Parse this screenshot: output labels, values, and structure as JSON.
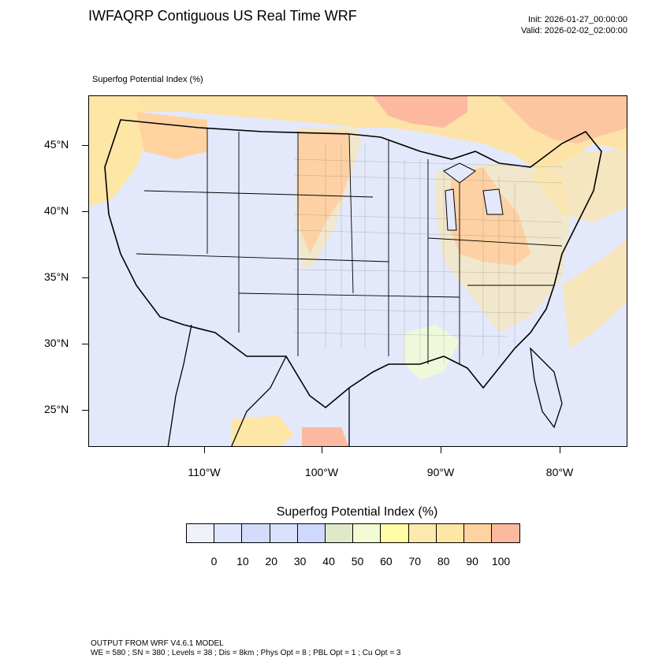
{
  "header": {
    "title": "IWFAQRP Contiguous US Real Time WRF",
    "init": "Init: 2026-01-27_00:00:00",
    "valid": "Valid: 2026-02-02_02:00:00"
  },
  "map": {
    "field_label": "Superfog Potential Index   (%)",
    "lat_labels": [
      "45°N",
      "40°N",
      "35°N",
      "30°N",
      "25°N"
    ],
    "lon_labels": [
      "110°W",
      "100°W",
      "90°W",
      "80°W"
    ]
  },
  "legend": {
    "title": "Superfog Potential Index  (%)",
    "colors": [
      "#eef1f8",
      "#e0e6fb",
      "#d3dcfb",
      "#d9e1fb",
      "#cfd8fd",
      "#dfe9c9",
      "#f2fbd3",
      "#fefca5",
      "#fde9ae",
      "#fde6a6",
      "#fed3a0",
      "#fcb9a0"
    ],
    "labels": [
      "0",
      "10",
      "20",
      "30",
      "40",
      "50",
      "60",
      "70",
      "80",
      "90",
      "100"
    ]
  },
  "footer": {
    "line1": "OUTPUT FROM WRF V4.6.1 MODEL",
    "line2": "WE = 580 ; SN = 380 ; Levels = 38 ; Dis = 8km ; Phys Opt = 8 ; PBL Opt = 1 ; Cu Opt = 3"
  }
}
